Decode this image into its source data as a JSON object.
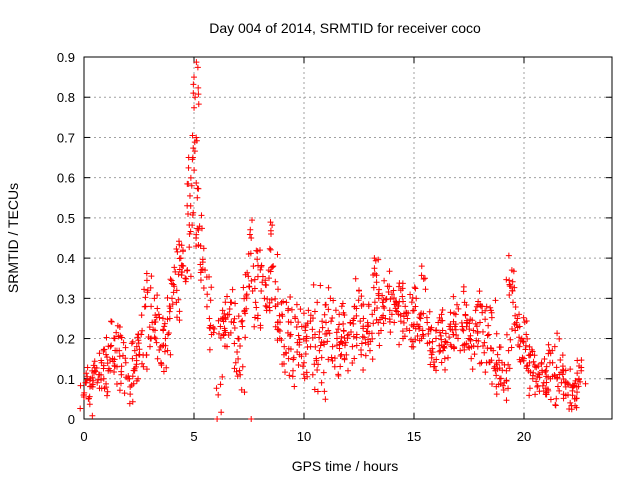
{
  "chart_data": {
    "type": "scatter",
    "title": "Day 004 of 2014, SRMTID for receiver coco",
    "xlabel": "GPS time / hours",
    "ylabel": "SRMTID / TECUs",
    "xlim": [
      0,
      24
    ],
    "ylim": [
      0,
      0.9
    ],
    "xticks": [
      0,
      5,
      10,
      15,
      20
    ],
    "xtick_labels": [
      "0",
      "5",
      "10",
      "15",
      "20"
    ],
    "yticks": [
      0,
      0.1,
      0.2,
      0.3,
      0.4,
      0.5,
      0.6,
      0.7,
      0.8,
      0.9
    ],
    "ytick_labels": [
      "0",
      "0.1",
      "0.2",
      "0.3",
      "0.4",
      "0.5",
      "0.6",
      "0.7",
      "0.8",
      "0.9"
    ],
    "grid": true,
    "marker": "+",
    "marker_color": "#ff0000",
    "series": [
      {
        "name": "SRMTID",
        "points": [
          [
            0.0,
            0.06
          ],
          [
            0.1,
            0.09
          ],
          [
            0.2,
            0.05
          ],
          [
            0.3,
            0.1
          ],
          [
            0.4,
            0.08
          ],
          [
            0.5,
            0.12
          ],
          [
            0.6,
            0.09
          ],
          [
            0.7,
            0.11
          ],
          [
            0.8,
            0.14
          ],
          [
            0.9,
            0.1
          ],
          [
            1.0,
            0.16
          ],
          [
            1.1,
            0.12
          ],
          [
            1.2,
            0.18
          ],
          [
            1.3,
            0.15
          ],
          [
            1.4,
            0.2
          ],
          [
            1.5,
            0.13
          ],
          [
            1.6,
            0.17
          ],
          [
            1.7,
            0.11
          ],
          [
            1.8,
            0.19
          ],
          [
            1.9,
            0.14
          ],
          [
            2.0,
            0.1
          ],
          [
            2.1,
            0.08
          ],
          [
            2.2,
            0.15
          ],
          [
            2.3,
            0.12
          ],
          [
            2.4,
            0.18
          ],
          [
            2.5,
            0.16
          ],
          [
            2.6,
            0.21
          ],
          [
            2.7,
            0.13
          ],
          [
            2.8,
            0.28
          ],
          [
            2.9,
            0.32
          ],
          [
            3.0,
            0.18
          ],
          [
            3.1,
            0.24
          ],
          [
            3.2,
            0.3
          ],
          [
            3.3,
            0.19
          ],
          [
            3.4,
            0.26
          ],
          [
            3.5,
            0.14
          ],
          [
            3.6,
            0.22
          ],
          [
            3.7,
            0.2
          ],
          [
            3.8,
            0.17
          ],
          [
            3.9,
            0.25
          ],
          [
            4.0,
            0.3
          ],
          [
            4.1,
            0.33
          ],
          [
            4.2,
            0.29
          ],
          [
            4.3,
            0.36
          ],
          [
            4.4,
            0.4
          ],
          [
            4.5,
            0.42
          ],
          [
            4.6,
            0.35
          ],
          [
            4.7,
            0.37
          ],
          [
            4.8,
            0.46
          ],
          [
            4.85,
            0.53
          ],
          [
            4.9,
            0.58
          ],
          [
            4.95,
            0.65
          ],
          [
            5.0,
            0.85
          ],
          [
            5.05,
            0.8
          ],
          [
            5.1,
            0.7
          ],
          [
            5.15,
            0.55
          ],
          [
            5.2,
            0.47
          ],
          [
            5.3,
            0.43
          ],
          [
            5.4,
            0.39
          ],
          [
            5.5,
            0.37
          ],
          [
            5.6,
            0.31
          ],
          [
            5.7,
            0.25
          ],
          [
            5.8,
            0.21
          ],
          [
            6.1,
            0.06
          ],
          [
            6.2,
            0.23
          ],
          [
            6.3,
            0.27
          ],
          [
            6.4,
            0.22
          ],
          [
            6.5,
            0.18
          ],
          [
            6.6,
            0.26
          ],
          [
            6.7,
            0.29
          ],
          [
            6.8,
            0.24
          ],
          [
            6.9,
            0.14
          ],
          [
            7.0,
            0.2
          ],
          [
            7.1,
            0.11
          ],
          [
            7.2,
            0.23
          ],
          [
            7.3,
            0.27
          ],
          [
            7.4,
            0.31
          ],
          [
            7.5,
            0.33
          ],
          [
            7.6,
            0.45
          ],
          [
            7.7,
            0.38
          ],
          [
            7.8,
            0.29
          ],
          [
            7.9,
            0.25
          ],
          [
            8.0,
            0.42
          ],
          [
            8.1,
            0.34
          ],
          [
            8.2,
            0.3
          ],
          [
            8.3,
            0.27
          ],
          [
            8.4,
            0.37
          ],
          [
            8.5,
            0.46
          ],
          [
            8.6,
            0.38
          ],
          [
            8.7,
            0.28
          ],
          [
            8.8,
            0.24
          ],
          [
            8.9,
            0.2
          ],
          [
            9.0,
            0.26
          ],
          [
            9.1,
            0.18
          ],
          [
            9.2,
            0.29
          ],
          [
            9.3,
            0.15
          ],
          [
            9.4,
            0.21
          ],
          [
            9.5,
            0.12
          ],
          [
            9.6,
            0.25
          ],
          [
            9.7,
            0.19
          ],
          [
            9.8,
            0.16
          ],
          [
            9.9,
            0.23
          ],
          [
            10.0,
            0.14
          ],
          [
            10.1,
            0.2
          ],
          [
            10.2,
            0.27
          ],
          [
            10.3,
            0.18
          ],
          [
            10.4,
            0.11
          ],
          [
            10.5,
            0.21
          ],
          [
            10.6,
            0.29
          ],
          [
            10.7,
            0.17
          ],
          [
            10.8,
            0.09
          ],
          [
            10.9,
            0.19
          ],
          [
            11.0,
            0.24
          ],
          [
            11.1,
            0.22
          ],
          [
            11.2,
            0.3
          ],
          [
            11.3,
            0.18
          ],
          [
            11.4,
            0.13
          ],
          [
            11.5,
            0.2
          ],
          [
            11.6,
            0.26
          ],
          [
            11.7,
            0.16
          ],
          [
            11.8,
            0.22
          ],
          [
            11.9,
            0.19
          ],
          [
            12.0,
            0.12
          ],
          [
            12.1,
            0.24
          ],
          [
            12.2,
            0.18
          ],
          [
            12.3,
            0.28
          ],
          [
            12.4,
            0.21
          ],
          [
            12.5,
            0.32
          ],
          [
            12.6,
            0.16
          ],
          [
            12.7,
            0.25
          ],
          [
            12.8,
            0.19
          ],
          [
            12.9,
            0.23
          ],
          [
            13.0,
            0.17
          ],
          [
            13.1,
            0.26
          ],
          [
            13.2,
            0.4
          ],
          [
            13.3,
            0.34
          ],
          [
            13.4,
            0.3
          ],
          [
            13.5,
            0.22
          ],
          [
            13.6,
            0.28
          ],
          [
            13.7,
            0.25
          ],
          [
            13.8,
            0.33
          ],
          [
            13.9,
            0.27
          ],
          [
            14.0,
            0.31
          ],
          [
            14.1,
            0.24
          ],
          [
            14.2,
            0.29
          ],
          [
            14.3,
            0.26
          ],
          [
            14.4,
            0.32
          ],
          [
            14.5,
            0.2
          ],
          [
            14.6,
            0.28
          ],
          [
            14.7,
            0.25
          ],
          [
            14.8,
            0.22
          ],
          [
            14.9,
            0.18
          ],
          [
            15.0,
            0.27
          ],
          [
            15.1,
            0.3
          ],
          [
            15.2,
            0.23
          ],
          [
            15.3,
            0.25
          ],
          [
            15.4,
            0.21
          ],
          [
            15.5,
            0.35
          ],
          [
            15.6,
            0.24
          ],
          [
            15.7,
            0.19
          ],
          [
            15.8,
            0.16
          ],
          [
            15.9,
            0.13
          ],
          [
            16.0,
            0.2
          ],
          [
            16.1,
            0.24
          ],
          [
            16.2,
            0.17
          ],
          [
            16.3,
            0.22
          ],
          [
            16.4,
            0.15
          ],
          [
            16.5,
            0.19
          ],
          [
            16.6,
            0.23
          ],
          [
            16.7,
            0.18
          ],
          [
            16.8,
            0.21
          ],
          [
            16.9,
            0.26
          ],
          [
            17.0,
            0.2
          ],
          [
            17.1,
            0.17
          ],
          [
            17.2,
            0.23
          ],
          [
            17.3,
            0.29
          ],
          [
            17.4,
            0.24
          ],
          [
            17.5,
            0.2
          ],
          [
            17.6,
            0.15
          ],
          [
            17.7,
            0.22
          ],
          [
            17.8,
            0.27
          ],
          [
            17.9,
            0.18
          ],
          [
            18.0,
            0.24
          ],
          [
            18.1,
            0.28
          ],
          [
            18.2,
            0.19
          ],
          [
            18.3,
            0.14
          ],
          [
            18.4,
            0.21
          ],
          [
            18.5,
            0.27
          ],
          [
            18.6,
            0.17
          ],
          [
            18.7,
            0.12
          ],
          [
            18.8,
            0.16
          ],
          [
            18.9,
            0.1
          ],
          [
            19.0,
            0.14
          ],
          [
            19.1,
            0.09
          ],
          [
            19.2,
            0.12
          ],
          [
            19.3,
            0.17
          ],
          [
            19.4,
            0.33
          ],
          [
            19.45,
            0.37
          ],
          [
            19.5,
            0.29
          ],
          [
            19.6,
            0.22
          ],
          [
            19.7,
            0.25
          ],
          [
            19.8,
            0.18
          ],
          [
            19.9,
            0.2
          ],
          [
            20.0,
            0.15
          ],
          [
            20.1,
            0.21
          ],
          [
            20.2,
            0.12
          ],
          [
            20.3,
            0.16
          ],
          [
            20.4,
            0.1
          ],
          [
            20.5,
            0.13
          ],
          [
            20.6,
            0.08
          ],
          [
            20.7,
            0.11
          ],
          [
            20.8,
            0.14
          ],
          [
            20.9,
            0.09
          ],
          [
            21.0,
            0.12
          ],
          [
            21.1,
            0.07
          ],
          [
            21.2,
            0.1
          ],
          [
            21.3,
            0.14
          ],
          [
            21.4,
            0.18
          ],
          [
            21.5,
            0.1
          ],
          [
            21.6,
            0.07
          ],
          [
            21.7,
            0.09
          ],
          [
            21.8,
            0.12
          ],
          [
            21.9,
            0.08
          ],
          [
            22.0,
            0.06
          ],
          [
            22.1,
            0.04
          ],
          [
            22.2,
            0.07
          ],
          [
            22.3,
            0.05
          ],
          [
            22.4,
            0.08
          ],
          [
            22.5,
            0.1
          ],
          [
            22.6,
            0.12
          ]
        ],
        "isolated_points": [
          [
            6.05,
            0.0
          ],
          [
            7.6,
            0.0
          ]
        ]
      }
    ]
  }
}
